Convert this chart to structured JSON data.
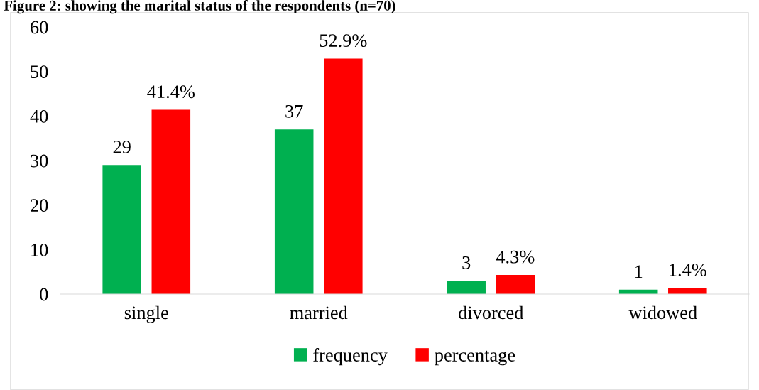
{
  "chart_data": {
    "type": "bar",
    "title": "Figure 2: showing the marital status of the respondents (n=70)",
    "categories": [
      "single",
      "married",
      "divorced",
      "widowed"
    ],
    "series": [
      {
        "name": "frequency",
        "color": "#00b050",
        "values": [
          29,
          37,
          3,
          1
        ],
        "value_labels": [
          "29",
          "37",
          "3",
          "1"
        ]
      },
      {
        "name": "percentage",
        "color": "#ff0000",
        "values": [
          41.4,
          52.9,
          4.3,
          1.4
        ],
        "value_labels": [
          "41.4%",
          "52.9%",
          "4.3%",
          "1.4%"
        ]
      }
    ],
    "ylim": [
      0,
      60
    ],
    "yticks": [
      0,
      10,
      20,
      30,
      40,
      50,
      60
    ],
    "grid": false,
    "legend": "bottom"
  }
}
